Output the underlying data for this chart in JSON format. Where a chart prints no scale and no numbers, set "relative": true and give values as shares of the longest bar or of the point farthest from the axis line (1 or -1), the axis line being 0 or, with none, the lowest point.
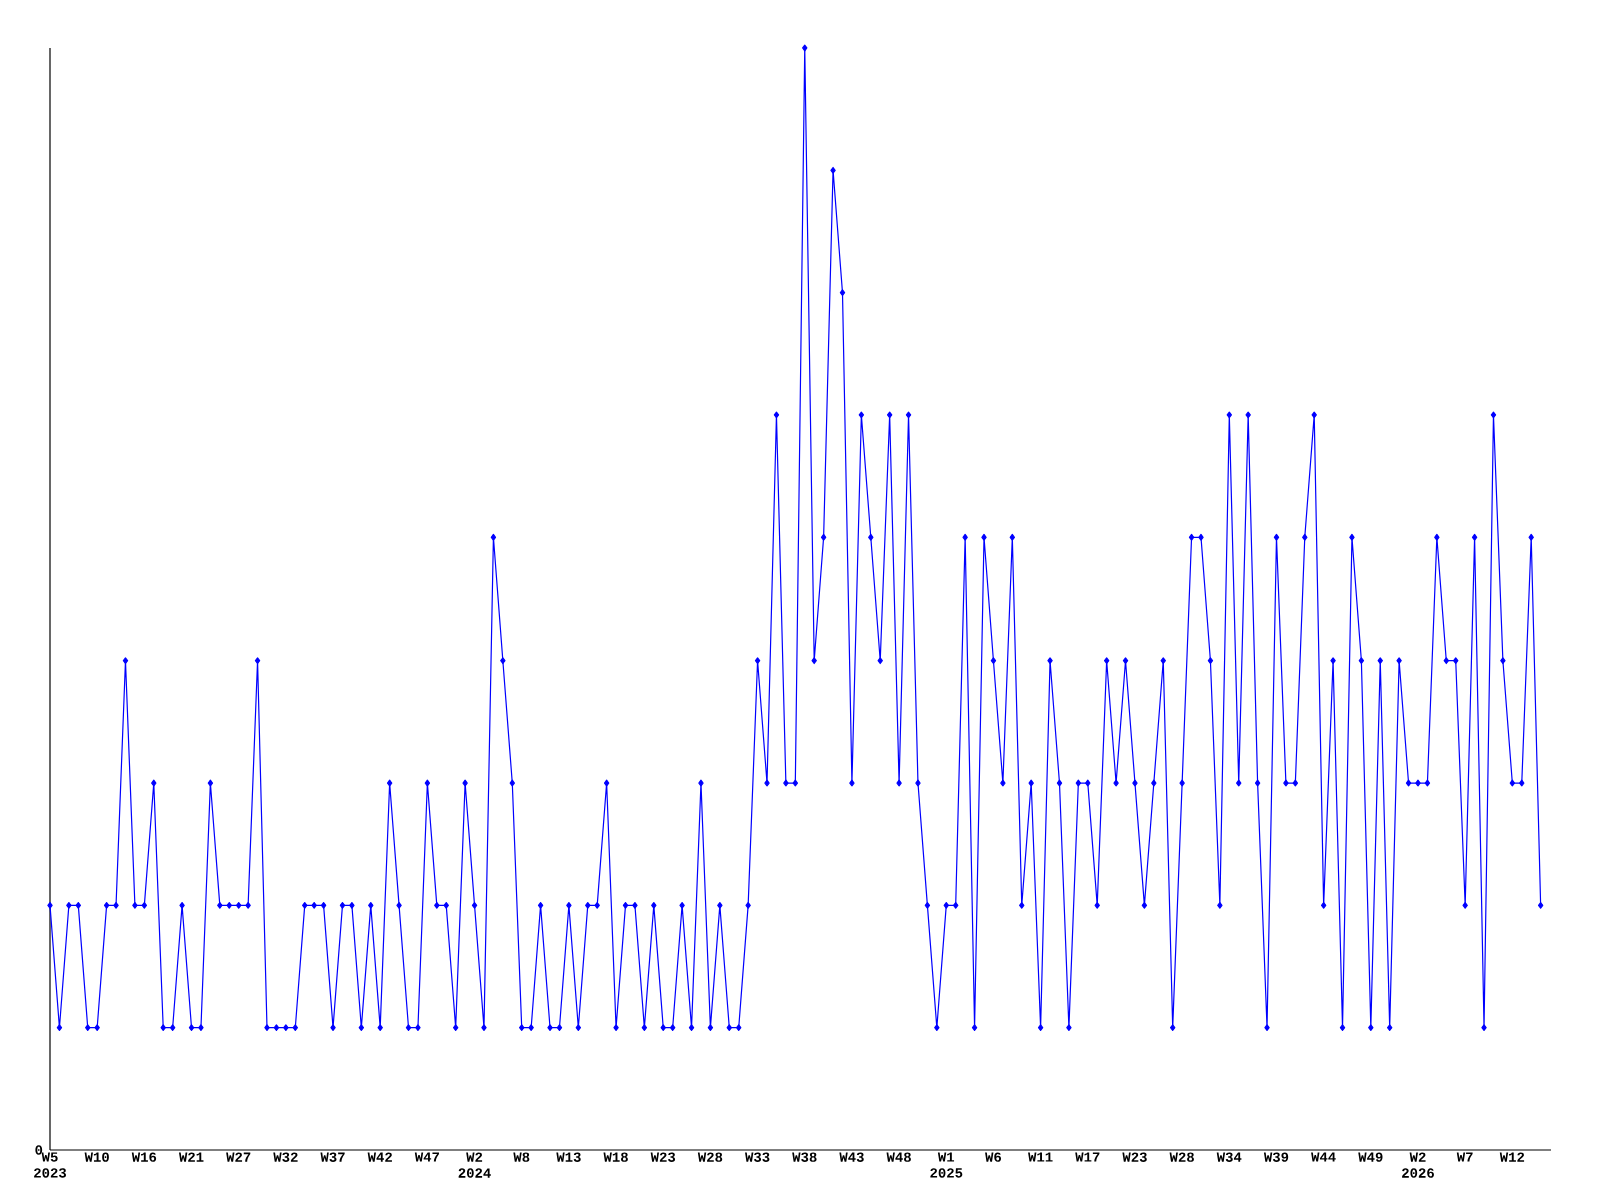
{
  "chart_data": {
    "type": "line",
    "relative": true,
    "color": "#0000ff",
    "marker": "diamond",
    "grid": false,
    "annotations": [
      "0"
    ],
    "categories": [
      "W5 2023",
      null,
      null,
      null,
      null,
      "W10",
      null,
      null,
      null,
      null,
      "W16",
      null,
      null,
      null,
      null,
      "W21",
      null,
      null,
      null,
      null,
      "W27",
      null,
      null,
      null,
      null,
      "W32",
      null,
      null,
      null,
      null,
      "W37",
      null,
      null,
      null,
      null,
      "W42",
      null,
      null,
      null,
      null,
      "W47",
      null,
      null,
      null,
      null,
      "W2 2024",
      null,
      null,
      null,
      null,
      "W8",
      null,
      null,
      null,
      null,
      "W13",
      null,
      null,
      null,
      null,
      "W18",
      null,
      null,
      null,
      null,
      "W23",
      null,
      null,
      null,
      null,
      "W28",
      null,
      null,
      null,
      null,
      "W33",
      null,
      null,
      null,
      null,
      "W38",
      null,
      null,
      null,
      null,
      "W43",
      null,
      null,
      null,
      null,
      "W48",
      null,
      null,
      null,
      null,
      "W1 2025",
      null,
      null,
      null,
      null,
      "W6",
      null,
      null,
      null,
      null,
      "W11",
      null,
      null,
      null,
      null,
      "W17",
      null,
      null,
      null,
      null,
      "W23",
      null,
      null,
      null,
      null,
      "W28",
      null,
      null,
      null,
      null,
      "W34",
      null,
      null,
      null,
      null,
      "W39",
      null,
      null,
      null,
      null,
      "W44",
      null,
      null,
      null,
      null,
      "W49",
      null,
      null,
      null,
      null,
      "W2 2026",
      null,
      null,
      null,
      null,
      "W7",
      null,
      null,
      null,
      null,
      "W12",
      null,
      null,
      null
    ],
    "values": [
      0.222,
      0.111,
      0.222,
      0.222,
      0.111,
      0.111,
      0.222,
      0.222,
      0.444,
      0.222,
      0.222,
      0.333,
      0.111,
      0.111,
      0.222,
      0.111,
      0.111,
      0.333,
      0.222,
      0.222,
      0.222,
      0.222,
      0.444,
      0.111,
      0.111,
      0.111,
      0.111,
      0.222,
      0.222,
      0.222,
      0.111,
      0.222,
      0.222,
      0.111,
      0.222,
      0.111,
      0.333,
      0.222,
      0.111,
      0.111,
      0.333,
      0.222,
      0.222,
      0.111,
      0.333,
      0.222,
      0.111,
      0.556,
      0.444,
      0.333,
      0.111,
      0.111,
      0.222,
      0.111,
      0.111,
      0.222,
      0.111,
      0.222,
      0.222,
      0.333,
      0.111,
      0.222,
      0.222,
      0.111,
      0.222,
      0.111,
      0.111,
      0.222,
      0.111,
      0.333,
      0.111,
      0.222,
      0.111,
      0.111,
      0.222,
      0.444,
      0.333,
      0.667,
      0.333,
      0.333,
      1,
      0.444,
      0.556,
      0.889,
      0.778,
      0.333,
      0.667,
      0.556,
      0.444,
      0.667,
      0.333,
      0.667,
      0.333,
      0.222,
      0.111,
      0.222,
      0.222,
      0.556,
      0.111,
      0.556,
      0.444,
      0.333,
      0.556,
      0.222,
      0.333,
      0.111,
      0.444,
      0.333,
      0.111,
      0.333,
      0.333,
      0.222,
      0.444,
      0.333,
      0.444,
      0.333,
      0.222,
      0.333,
      0.444,
      0.111,
      0.333,
      0.556,
      0.556,
      0.444,
      0.222,
      0.667,
      0.333,
      0.667,
      0.333,
      0.111,
      0.556,
      0.333,
      0.333,
      0.556,
      0.667,
      0.222,
      0.444,
      0.111,
      0.556,
      0.444,
      0.111,
      0.444,
      0.111,
      0.444,
      0.333,
      0.333,
      0.333,
      0.556,
      0.444,
      0.444,
      0.222,
      0.556,
      0.111,
      0.667,
      0.444,
      0.333,
      0.333,
      0.556,
      0.222
    ]
  }
}
